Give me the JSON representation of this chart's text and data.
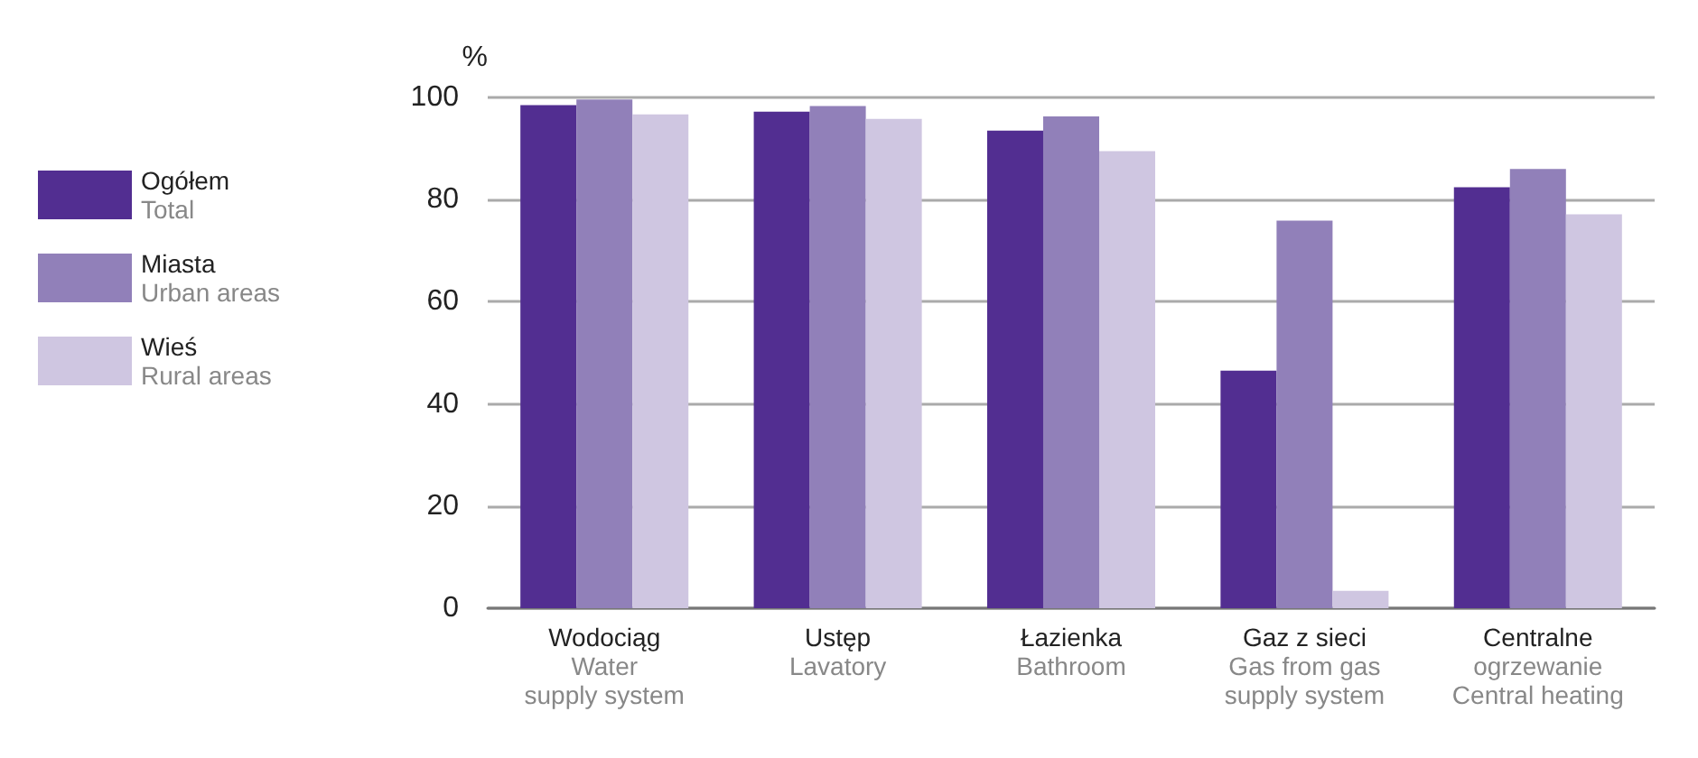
{
  "chart_data": {
    "type": "bar",
    "ylabel": "%",
    "categories": [
      "Wodociąg\nWater\nsupply system",
      "Ustęp\nLavatory",
      "Łazienka\nBathroom",
      "Gaz z sieci\nGas from gas\nsupply system",
      "Centralne\nogrzewanie\nCentral heating"
    ],
    "series": [
      {
        "name": "Ogółem\nTotal",
        "color": "#522e91",
        "values": [
          98.5,
          97.2,
          93.5,
          46.5,
          82.4
        ]
      },
      {
        "name": "Miasta\nUrban areas",
        "color": "#9180b9",
        "values": [
          99.6,
          98.3,
          96.3,
          75.9,
          86.0
        ]
      },
      {
        "name": "Wieś\nRural areas",
        "color": "#cfc6e1",
        "values": [
          96.7,
          95.8,
          89.5,
          3.4,
          77.1
        ]
      }
    ],
    "ylim": [
      0,
      100
    ],
    "yticks": [
      0,
      20,
      40,
      60,
      80,
      100
    ],
    "grid": "y",
    "legend": "left"
  }
}
